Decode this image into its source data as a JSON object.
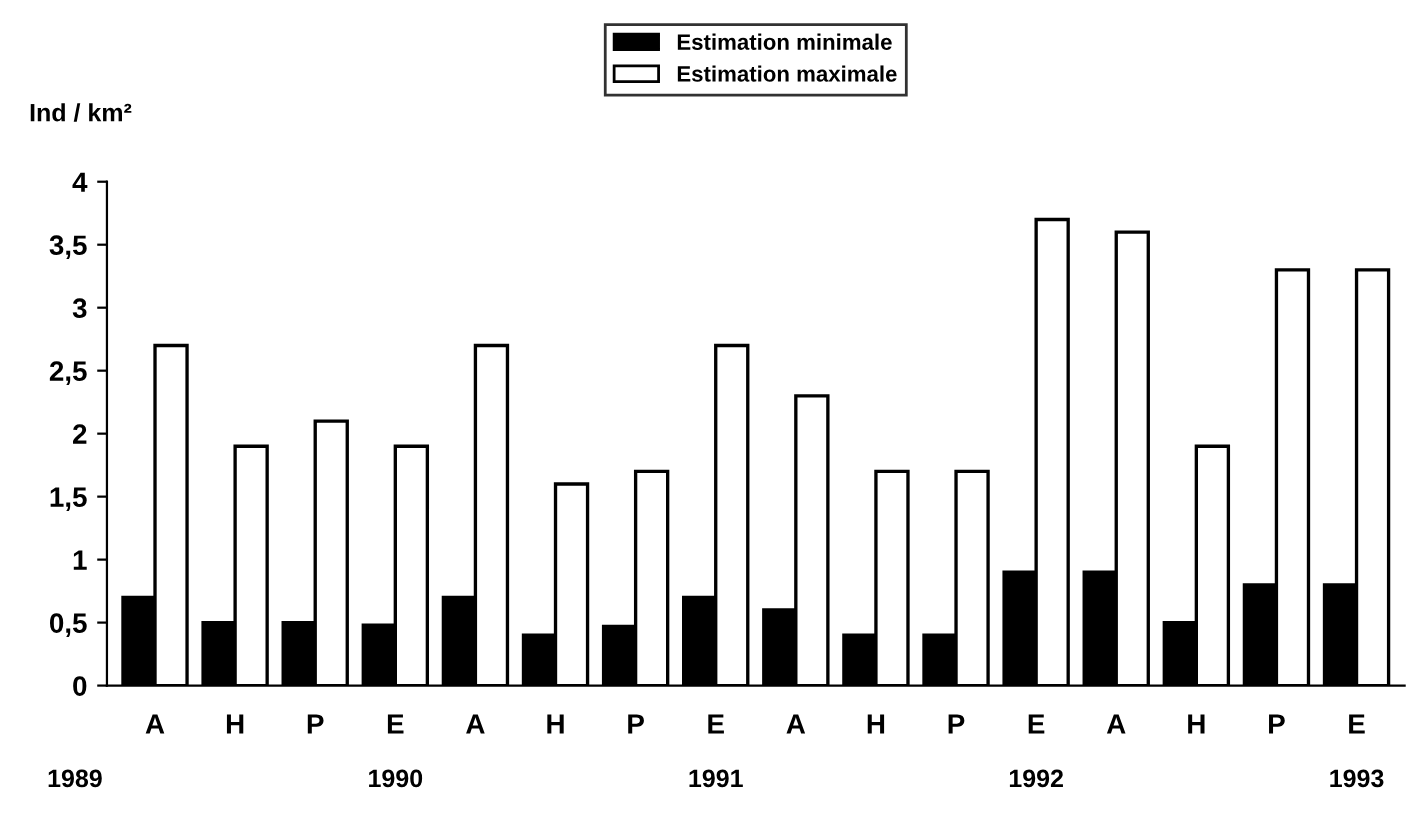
{
  "chart_data": {
    "type": "bar",
    "ylabel": "Ind / km²",
    "categories": [
      "A",
      "H",
      "P",
      "E",
      "A",
      "H",
      "P",
      "E",
      "A",
      "H",
      "P",
      "E",
      "A",
      "H",
      "P",
      "E"
    ],
    "series": [
      {
        "name": "Estimation minimale",
        "color": "#000000",
        "values": [
          0.7,
          0.5,
          0.5,
          0.48,
          0.7,
          0.4,
          0.47,
          0.7,
          0.6,
          0.4,
          0.4,
          0.9,
          0.9,
          0.5,
          0.8,
          0.8
        ]
      },
      {
        "name": "Estimation maximale",
        "color": "#ffffff",
        "values": [
          2.7,
          1.9,
          2.1,
          1.9,
          2.7,
          1.6,
          1.7,
          2.7,
          2.3,
          1.7,
          1.7,
          3.7,
          3.6,
          1.9,
          3.3,
          3.3
        ]
      }
    ],
    "ylim": [
      0,
      4
    ],
    "yticks": [
      0,
      {
        "value": 0.5,
        "label": "0,5"
      },
      1,
      {
        "value": 1.5,
        "label": "1,5"
      },
      2,
      {
        "value": 2.5,
        "label": "2,5"
      },
      3,
      {
        "value": 3.5,
        "label": "3,5"
      },
      4
    ],
    "annotations": [
      "1989",
      "1990",
      "1991",
      "1992",
      "1993"
    ],
    "grid": false,
    "legend": "top"
  }
}
